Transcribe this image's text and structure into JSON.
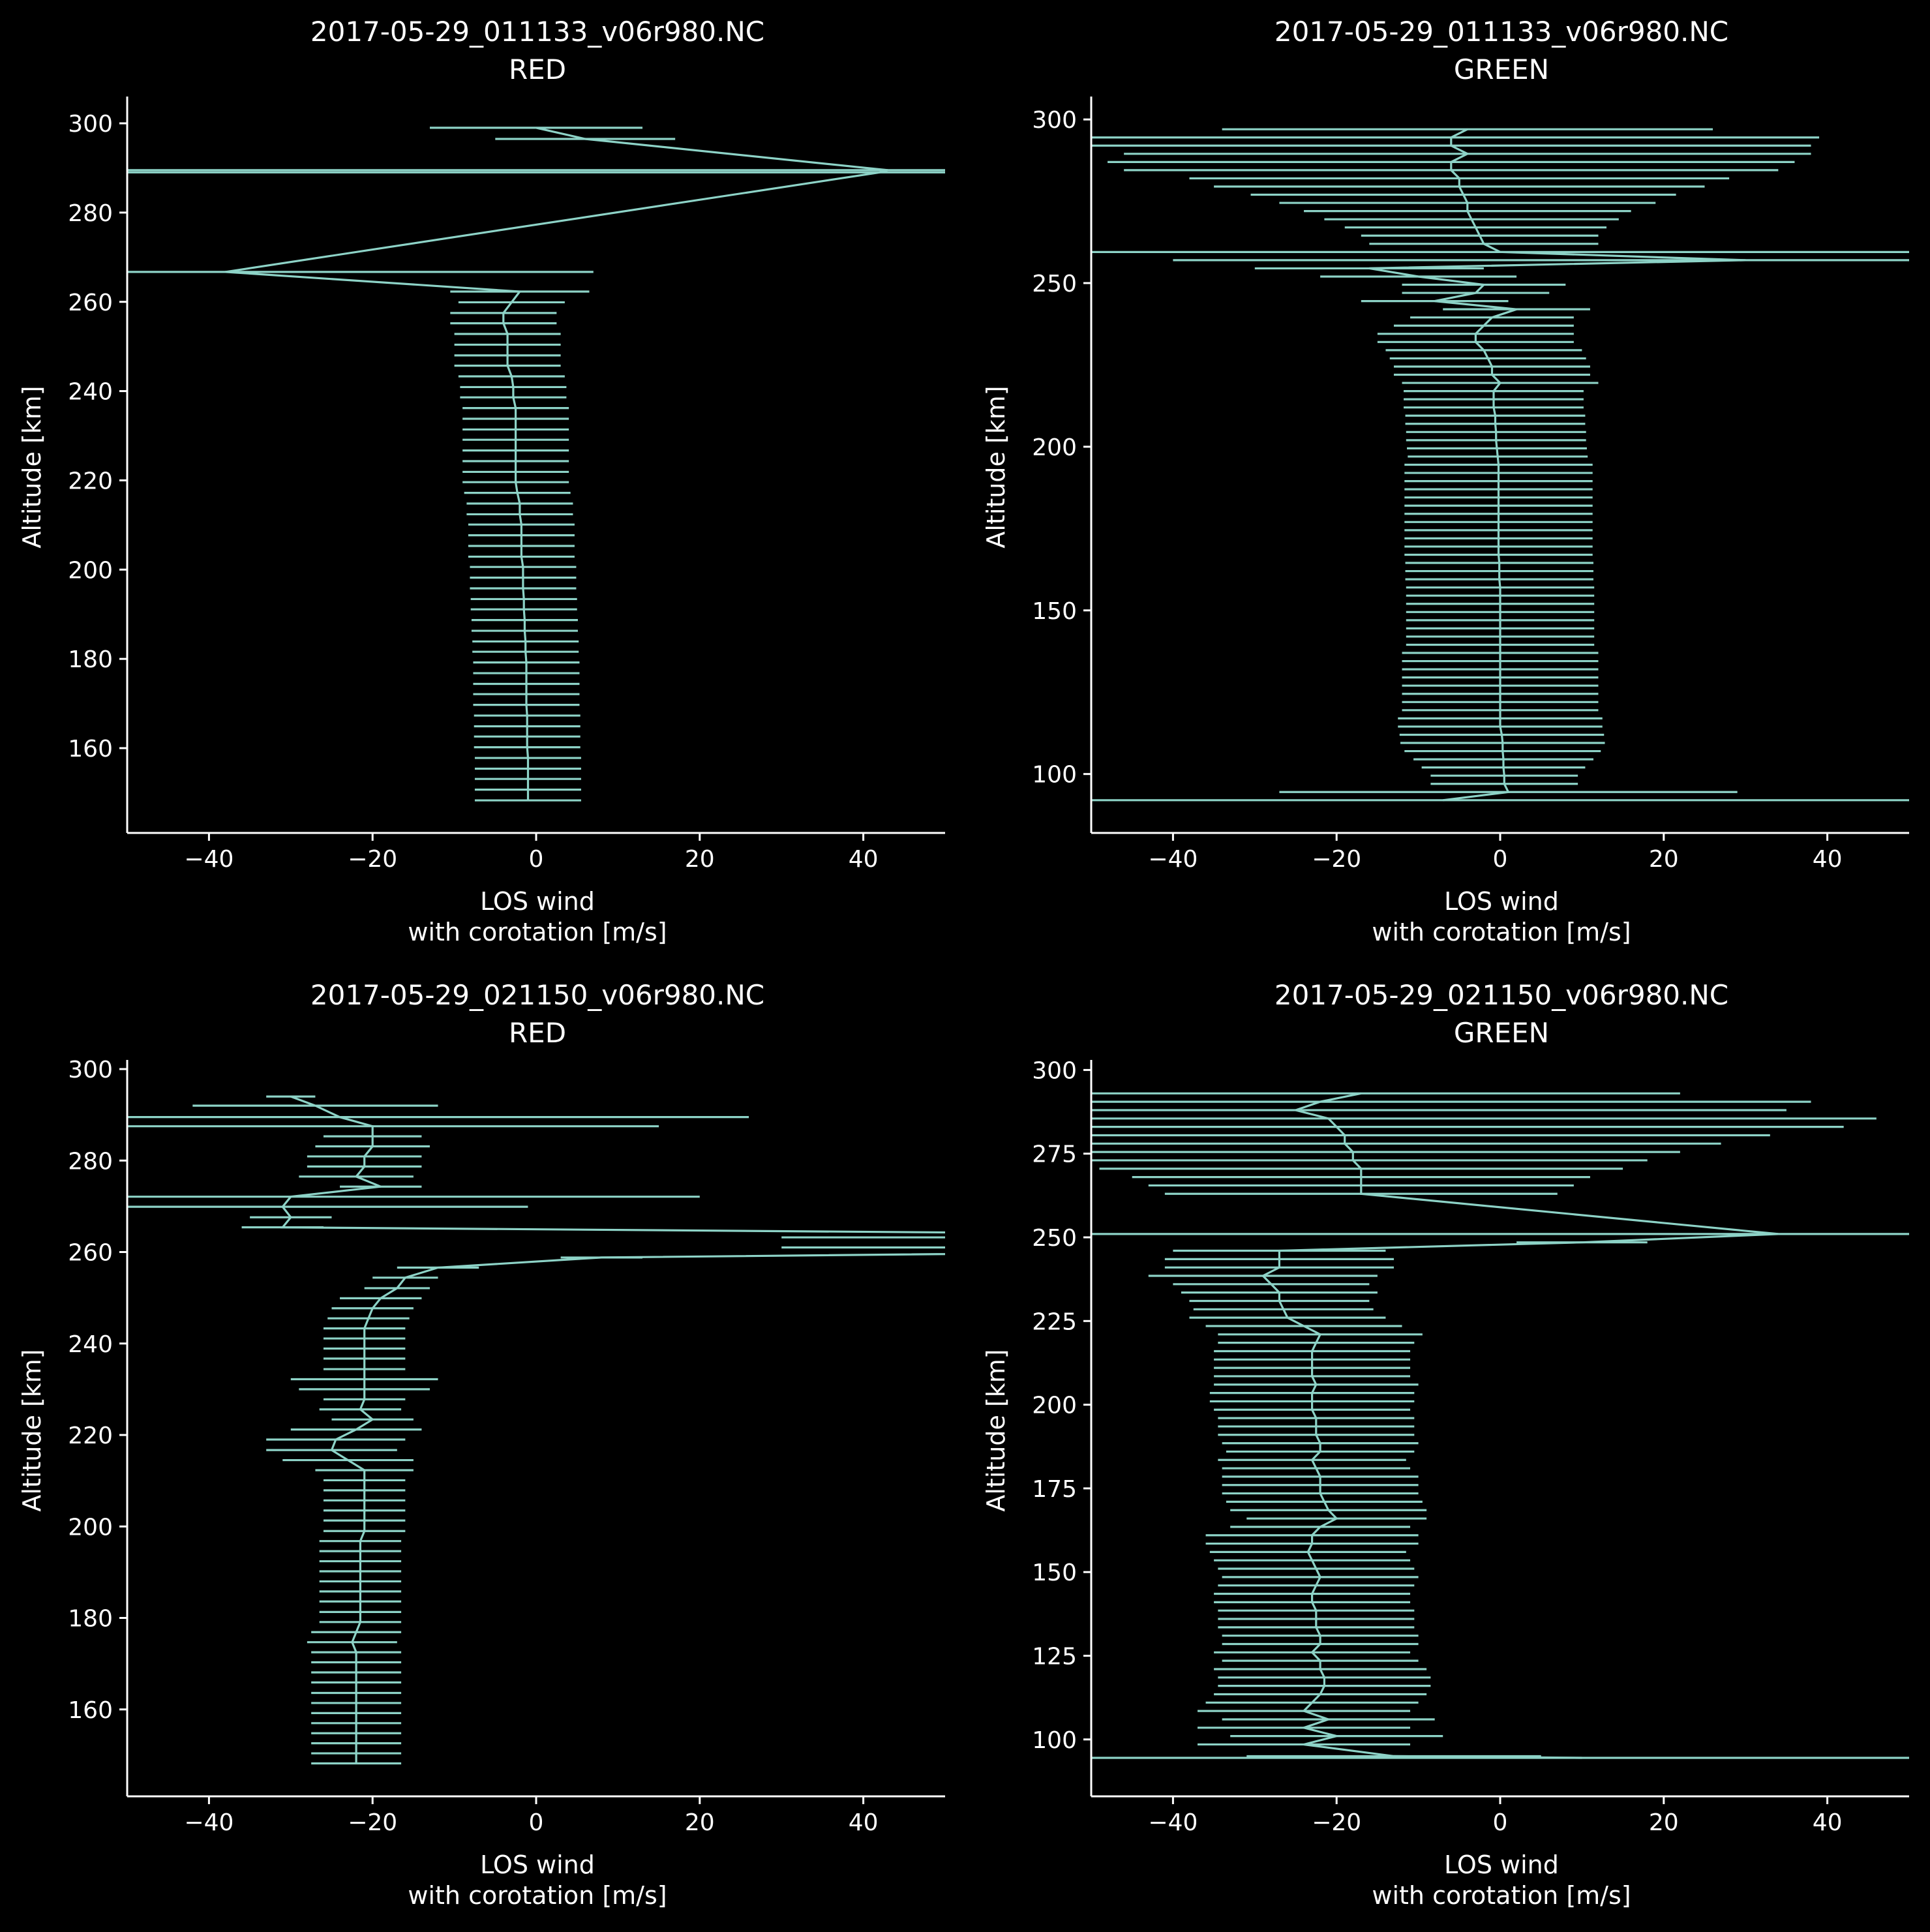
{
  "chart_data": [
    {
      "type": "line",
      "title": [
        "2017-05-29_011133_v06r980.NC",
        "RED"
      ],
      "xlabel": [
        "LOS wind",
        "with corotation [m/s]"
      ],
      "ylabel": "Altitude [km]",
      "xlim": [
        -50,
        50
      ],
      "ylim": [
        141,
        306
      ],
      "xticks": [
        -40,
        -20,
        0,
        20,
        40
      ],
      "xtick_labels": [
        "−40",
        "−20",
        "0",
        "20",
        "40"
      ],
      "yticks": [
        160,
        180,
        200,
        220,
        240,
        260,
        280,
        300
      ],
      "ytick_labels": [
        "160",
        "180",
        "200",
        "220",
        "240",
        "260",
        "280",
        "300"
      ],
      "grid": false,
      "series": [
        {
          "altitude": [
            299,
            296.5,
            289.5,
            289,
            266.7,
            262.3,
            259.9,
            257.5,
            255.2,
            252.8,
            250.4,
            248.0,
            245.7,
            243.3,
            240.9,
            238.6,
            236.2,
            233.8,
            231.4,
            229.1,
            226.7,
            224.3,
            221.9,
            219.6,
            217.2,
            214.8,
            212.4,
            210.1,
            207.7,
            205.3,
            202.9,
            200.6,
            198.2,
            195.8,
            193.4,
            191.1,
            188.7,
            186.3,
            183.9,
            181.6,
            179.2,
            176.8,
            174.4,
            172.1,
            169.7,
            167.3,
            164.9,
            162.6,
            160.2,
            157.8,
            155.4,
            153.1,
            150.7,
            148.3
          ],
          "wind": [
            0,
            6,
            43,
            42,
            -38,
            -2,
            -3,
            -4,
            -4,
            -3.5,
            -3.5,
            -3.5,
            -3.5,
            -3,
            -2.8,
            -2.8,
            -2.5,
            -2.5,
            -2.5,
            -2.5,
            -2.5,
            -2.5,
            -2.5,
            -2.5,
            -2.3,
            -2,
            -2,
            -1.8,
            -1.8,
            -1.8,
            -1.8,
            -1.6,
            -1.6,
            -1.6,
            -1.5,
            -1.5,
            -1.4,
            -1.4,
            -1.3,
            -1.3,
            -1.2,
            -1.2,
            -1.2,
            -1.2,
            -1.2,
            -1.1,
            -1.1,
            -1.1,
            -1.1,
            -1.0,
            -1.0,
            -1.0,
            -1.0,
            -1.0
          ],
          "err": [
            13,
            11,
            110,
            110,
            45,
            8.5,
            6.5,
            6.5,
            6.5,
            6.5,
            6.5,
            6.5,
            6.5,
            6.5,
            6.5,
            6.5,
            6.5,
            6.5,
            6.5,
            6.5,
            6.5,
            6.5,
            6.5,
            6.5,
            6.5,
            6.5,
            6.5,
            6.5,
            6.5,
            6.5,
            6.5,
            6.5,
            6.5,
            6.5,
            6.5,
            6.5,
            6.5,
            6.5,
            6.5,
            6.5,
            6.5,
            6.5,
            6.5,
            6.5,
            6.5,
            6.5,
            6.5,
            6.5,
            6.5,
            6.5,
            6.5,
            6.5,
            6.5,
            6.5
          ]
        }
      ]
    },
    {
      "type": "line",
      "title": [
        "2017-05-29_011133_v06r980.NC",
        "GREEN"
      ],
      "xlabel": [
        "LOS wind",
        "with corotation [m/s]"
      ],
      "ylabel": "Altitude [km]",
      "xlim": [
        -50,
        50
      ],
      "ylim": [
        82,
        307
      ],
      "xticks": [
        -40,
        -20,
        0,
        20,
        40
      ],
      "xtick_labels": [
        "−40",
        "−20",
        "0",
        "20",
        "40"
      ],
      "yticks": [
        100,
        150,
        200,
        250,
        300
      ],
      "ytick_labels": [
        "100",
        "150",
        "200",
        "250",
        "300"
      ],
      "grid": false,
      "series": [
        {
          "altitude": [
            297,
            294.5,
            292,
            289.5,
            287,
            284.5,
            282,
            279.5,
            277,
            274.5,
            272,
            269.5,
            267,
            264.5,
            262,
            259.5,
            257,
            254.5,
            252,
            249.5,
            247,
            244.5,
            242,
            239.5,
            237,
            234.5,
            232,
            229.5,
            227,
            224.5,
            222,
            219.5,
            217,
            214.5,
            212,
            209.5,
            207,
            204.5,
            202,
            199.5,
            197,
            194.5,
            192,
            189.5,
            187,
            184.5,
            182,
            179.5,
            177,
            174.5,
            172,
            169.5,
            167,
            164.5,
            162,
            159.5,
            157,
            154.5,
            152,
            149.5,
            147,
            144.5,
            142,
            139.5,
            137,
            134.5,
            132,
            129.5,
            127,
            124.5,
            122,
            119.5,
            117,
            114.5,
            112,
            109.5,
            107,
            104.5,
            102,
            99.5,
            97,
            94.5,
            92
          ],
          "wind": [
            -4,
            -6,
            -6,
            -4,
            -6,
            -6,
            -5,
            -5,
            -4.5,
            -4,
            -4,
            -3.5,
            -3,
            -2.5,
            -2,
            0,
            30,
            -16,
            -10,
            -2,
            -3,
            -8,
            2,
            -1,
            -2,
            -3,
            -3,
            -2,
            -1.5,
            -1,
            -1,
            0,
            -0.8,
            -0.8,
            -0.8,
            -0.6,
            -0.6,
            -0.5,
            -0.5,
            -0.4,
            -0.3,
            -0.2,
            -0.2,
            -0.2,
            -0.2,
            -0.2,
            -0.2,
            -0.2,
            -0.2,
            -0.2,
            -0.2,
            -0.2,
            -0.2,
            -0.1,
            -0.1,
            -0.1,
            0,
            0,
            0,
            0,
            0,
            0,
            0,
            0,
            0,
            0,
            0,
            0,
            0,
            0,
            0,
            0,
            0,
            0,
            0.2,
            0.3,
            0.3,
            0.4,
            0.4,
            0.5,
            0.5,
            1,
            -7
          ],
          "err": [
            30,
            45,
            44,
            42,
            42,
            40,
            33,
            30,
            26,
            23,
            20,
            18,
            16,
            14.5,
            14,
            65,
            70,
            14,
            12,
            10,
            9,
            9,
            9,
            10,
            11,
            12,
            12,
            12,
            12,
            12,
            12,
            12,
            11,
            11,
            11,
            11,
            11,
            11,
            11,
            11,
            11,
            11.5,
            11.5,
            11.5,
            11.5,
            11.5,
            11.5,
            11.5,
            11.5,
            11.5,
            11.5,
            11.5,
            11.5,
            11.5,
            11.5,
            11.5,
            11.5,
            11.5,
            11.5,
            11.5,
            11.5,
            11.5,
            11.5,
            11.5,
            12,
            12,
            12,
            12,
            12,
            12,
            12,
            12,
            12.5,
            12.5,
            12.5,
            12.5,
            12,
            11,
            10,
            9,
            9,
            28,
            120
          ]
        }
      ]
    },
    {
      "type": "line",
      "title": [
        "2017-05-29_021150_v06r980.NC",
        "RED"
      ],
      "xlabel": [
        "LOS wind",
        "with corotation [m/s]"
      ],
      "ylabel": "Altitude [km]",
      "xlim": [
        -50,
        50
      ],
      "ylim": [
        141,
        302
      ],
      "xticks": [
        -40,
        -20,
        0,
        20,
        40
      ],
      "xtick_labels": [
        "−40",
        "−20",
        "0",
        "20",
        "40"
      ],
      "yticks": [
        160,
        180,
        200,
        220,
        240,
        260,
        280,
        300
      ],
      "ytick_labels": [
        "160",
        "180",
        "200",
        "220",
        "240",
        "260",
        "280",
        "300"
      ],
      "grid": false,
      "series": [
        {
          "altitude": [
            294,
            292,
            289.5,
            287.5,
            285.3,
            283.1,
            280.9,
            278.7,
            276.5,
            274.3,
            272.1,
            269.9,
            267.6,
            265.4,
            263.2,
            261,
            258.8,
            256.6,
            254.4,
            252.1,
            249.9,
            247.7,
            245.5,
            243.3,
            241.1,
            238.9,
            236.7,
            234.4,
            232.2,
            230,
            227.8,
            225.6,
            223.4,
            221.2,
            219,
            216.7,
            214.5,
            212.3,
            210.1,
            207.9,
            205.7,
            203.5,
            201.3,
            199,
            196.8,
            194.6,
            192.4,
            190.2,
            188,
            185.8,
            183.6,
            181.3,
            179.1,
            176.9,
            174.7,
            172.5,
            170.3,
            168.1,
            165.9,
            163.6,
            161.4,
            159.2,
            157,
            154.8,
            152.6,
            150.4,
            148.2
          ],
          "wind": [
            -30,
            -27,
            -24,
            -20,
            -20,
            -20,
            -21,
            -21,
            -22,
            -19,
            -30,
            -31,
            -30,
            -31,
            130,
            130,
            8,
            -12,
            -16,
            -17,
            -19,
            -20,
            -20.5,
            -21,
            -21,
            -21,
            -21,
            -21,
            -21,
            -21,
            -21,
            -21.5,
            -20,
            -22,
            -24.5,
            -25,
            -23,
            -21,
            -21,
            -21,
            -21,
            -21,
            -21,
            -21,
            -21.5,
            -21.5,
            -21.5,
            -21.5,
            -21.5,
            -21.5,
            -21.5,
            -21.5,
            -21.5,
            -22,
            -22.5,
            -22,
            -22,
            -22,
            -22,
            -22,
            -22,
            -22,
            -22,
            -22,
            -22,
            -22,
            -22
          ],
          "err": [
            3,
            15,
            50,
            35,
            6,
            7,
            7,
            7,
            7,
            5,
            50,
            30,
            5,
            5,
            100,
            100,
            5,
            5,
            4,
            4,
            5,
            5,
            5,
            5,
            5,
            5,
            5,
            5,
            9,
            8,
            5,
            5,
            5,
            8,
            8.5,
            8,
            8,
            6,
            5,
            5,
            5,
            5,
            5,
            5,
            5,
            5,
            5,
            5,
            5,
            5,
            5,
            5,
            5,
            5.5,
            5.5,
            5.5,
            5.5,
            5.5,
            5.5,
            5.5,
            5.5,
            5.5,
            5.5,
            5.5,
            5.5,
            5.5,
            5.5
          ]
        }
      ]
    },
    {
      "type": "line",
      "title": [
        "2017-05-29_021150_v06r980.NC",
        "GREEN"
      ],
      "xlabel": [
        "LOS wind",
        "with corotation [m/s]"
      ],
      "ylabel": "Altitude [km]",
      "xlim": [
        -50,
        50
      ],
      "ylim": [
        83,
        303
      ],
      "xticks": [
        -40,
        -20,
        0,
        20,
        40
      ],
      "xtick_labels": [
        "−40",
        "−20",
        "0",
        "20",
        "40"
      ],
      "yticks": [
        100,
        125,
        150,
        175,
        200,
        225,
        250,
        275,
        300
      ],
      "ytick_labels": [
        "100",
        "125",
        "150",
        "175",
        "200",
        "225",
        "250",
        "275",
        "300"
      ],
      "grid": false,
      "series": [
        {
          "altitude": [
            293,
            290.5,
            288,
            285.5,
            283,
            280.5,
            278,
            275.5,
            273,
            270.5,
            268,
            265.5,
            263,
            251,
            248.5,
            246,
            243.5,
            241,
            238.5,
            236,
            233.5,
            231,
            228.5,
            226,
            223.5,
            221,
            218.5,
            216,
            213.5,
            211,
            208.5,
            206,
            203.5,
            201,
            198.5,
            196,
            193.5,
            191,
            188.5,
            186,
            183.5,
            181,
            178.5,
            176,
            173.5,
            171,
            168.5,
            166,
            163.5,
            161,
            158.5,
            156,
            153.5,
            151,
            148.5,
            146,
            143.5,
            141,
            138.5,
            136,
            133.5,
            131,
            128.5,
            126,
            123.5,
            121,
            118.5,
            116,
            113.5,
            111,
            108.5,
            106,
            103.5,
            101,
            98.5,
            95,
            94.5
          ],
          "wind": [
            -17,
            -22,
            -25,
            -21,
            -20,
            -19,
            -19,
            -18,
            -18,
            -17,
            -17,
            -17,
            -17,
            34,
            10,
            -27,
            -27,
            -27,
            -29,
            -28,
            -27,
            -27,
            -26.5,
            -26,
            -24,
            -22,
            -22.5,
            -23,
            -23,
            -23,
            -23,
            -22.5,
            -23,
            -23,
            -23,
            -22.5,
            -22.5,
            -22.5,
            -22,
            -22,
            -23,
            -22.5,
            -22,
            -22,
            -22,
            -21.5,
            -21,
            -20,
            -22,
            -23,
            -23,
            -23.5,
            -23,
            -22.5,
            -22,
            -22.5,
            -23,
            -23,
            -22.5,
            -22.5,
            -22.5,
            -22,
            -22,
            -23,
            -22,
            -22,
            -21.5,
            -21.5,
            -22,
            -23,
            -24,
            -21,
            -24,
            -20,
            -24,
            -13,
            10
          ],
          "err": [
            39,
            60,
            60,
            67,
            62,
            52,
            46,
            40,
            36,
            32,
            28,
            26,
            24,
            120,
            8,
            13,
            14,
            14,
            14,
            12,
            12,
            11,
            11,
            12,
            12,
            12.5,
            12,
            12,
            12,
            12,
            12,
            12.5,
            12.5,
            12.5,
            12,
            12,
            12,
            12,
            12,
            11.5,
            11.5,
            11.5,
            12,
            12,
            12,
            12,
            12,
            11,
            11,
            13,
            13,
            12,
            12,
            12,
            12,
            12,
            12,
            12,
            12,
            12,
            12,
            12,
            12,
            12,
            12,
            13,
            13,
            13,
            13,
            13,
            13,
            13,
            13,
            13,
            13,
            18,
            120
          ]
        }
      ]
    }
  ]
}
